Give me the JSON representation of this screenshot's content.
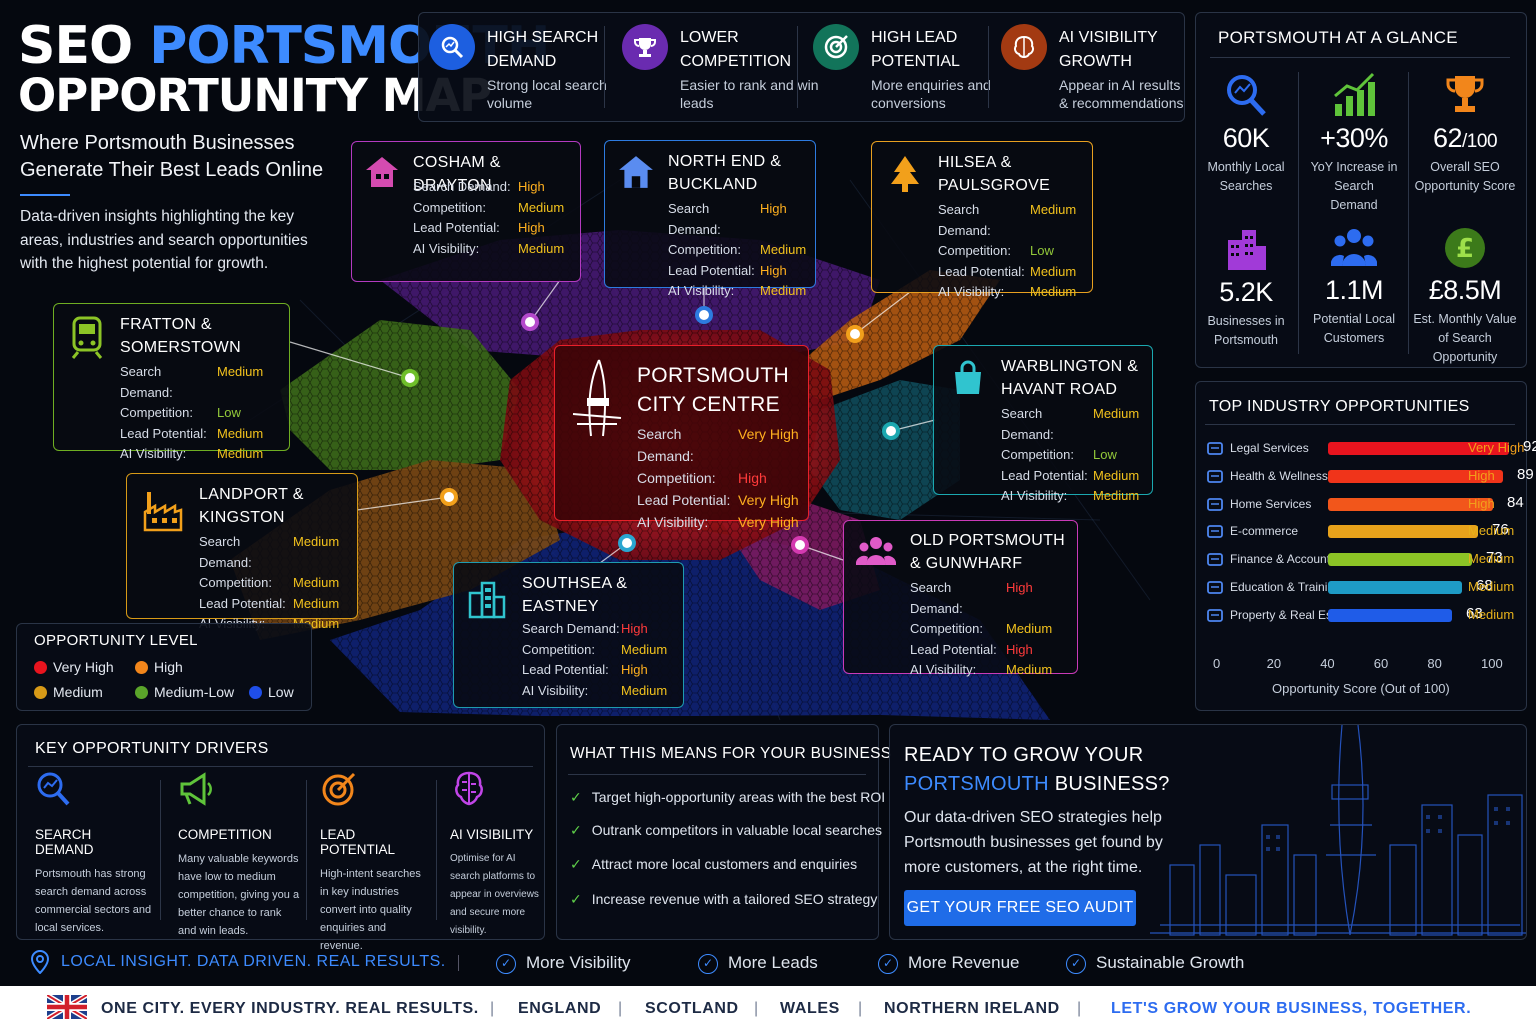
{
  "header": {
    "title_line1_a": "SEO",
    "title_line1_b": "PORTSMOUTH",
    "title_line2": "OPPORTUNITY MAP",
    "subtitle": "Where Portsmouth Businesses Generate Their Best Leads Online",
    "intro": "Data-driven insights highlighting the key areas, industries and search opportunities with the highest potential for growth."
  },
  "features": [
    {
      "title": "HIGH SEARCH DEMAND",
      "desc": "Strong local search volume",
      "icon": "search-chart-icon",
      "color": "#1d5fe0"
    },
    {
      "title": "LOWER COMPETITION",
      "desc": "Easier to rank and win leads",
      "icon": "trophy-icon",
      "color": "#6a2bb0"
    },
    {
      "title": "HIGH LEAD POTENTIAL",
      "desc": "More enquiries and conversions",
      "icon": "target-icon",
      "color": "#12745a"
    },
    {
      "title": "AI VISIBILITY GROWTH",
      "desc": "Appear in AI results & recommendations",
      "icon": "brain-icon",
      "color": "#a33a12"
    }
  ],
  "labels": {
    "search_demand": "Search Demand:",
    "competition": "Competition:",
    "lead_potential": "Lead Potential:",
    "ai_visibility": "AI Visibility:"
  },
  "areas": {
    "cosham": {
      "name": "COSHAM & DRAYTON",
      "demand": "High",
      "competition": "Medium",
      "lead": "High",
      "ai": "Medium"
    },
    "northend": {
      "name": "NORTH END & BUCKLAND",
      "demand": "High",
      "competition": "Medium",
      "lead": "High",
      "ai": "Medium"
    },
    "hilsea": {
      "name": "HILSEA & PAULSGROVE",
      "demand": "Medium",
      "competition": "Low",
      "lead": "Medium",
      "ai": "Medium"
    },
    "fratton": {
      "name": "FRATTON & SOMERSTOWN",
      "demand": "Medium",
      "competition": "Low",
      "lead": "Medium",
      "ai": "Medium"
    },
    "centre": {
      "name": "PORTSMOUTH CITY CENTRE",
      "demand": "Very High",
      "competition": "High",
      "lead": "Very High",
      "ai": "Very High"
    },
    "warblington": {
      "name": "WARBLINGTON & HAVANT ROAD",
      "demand": "Medium",
      "competition": "Low",
      "lead": "Medium",
      "ai": "Medium"
    },
    "landport": {
      "name": "LANDPORT & KINGSTON",
      "demand": "Medium",
      "competition": "Medium",
      "lead": "Medium",
      "ai": "Medium"
    },
    "southsea": {
      "name": "SOUTHSEA & EASTNEY",
      "demand": "High",
      "competition": "Medium",
      "lead": "High",
      "ai": "Medium"
    },
    "oldportsmouth": {
      "name": "OLD PORTSMOUTH & GUNWHARF",
      "demand": "High",
      "competition": "Medium",
      "lead": "High",
      "ai": "Medium"
    }
  },
  "legend": {
    "title": "OPPORTUNITY LEVEL",
    "items": [
      {
        "label": "Very High",
        "color": "#e8141e"
      },
      {
        "label": "High",
        "color": "#f2861b"
      },
      {
        "label": "Medium",
        "color": "#d79a17"
      },
      {
        "label": "Medium-Low",
        "color": "#5aa52a"
      },
      {
        "label": "Low",
        "color": "#1f4ee8"
      }
    ]
  },
  "glance": {
    "title": "PORTSMOUTH AT A GLANCE",
    "stats": [
      {
        "value": "60K",
        "label": "Monthly Local Searches",
        "icon": "search-chart-icon"
      },
      {
        "value": "+30%",
        "label": "YoY Increase in Search Demand",
        "icon": "growth-chart-icon"
      },
      {
        "value": "62",
        "suffix": "/100",
        "label": "Overall SEO Opportunity Score",
        "icon": "trophy-icon"
      },
      {
        "value": "5.2K",
        "label": "Businesses in Portsmouth",
        "icon": "buildings-icon"
      },
      {
        "value": "1.1M",
        "label": "Potential Local Customers",
        "icon": "people-icon"
      },
      {
        "value": "£8.5M",
        "label": "Est. Monthly Value of Search Opportunity",
        "icon": "pound-icon"
      }
    ]
  },
  "industries": {
    "title": "TOP INDUSTRY OPPORTUNITIES",
    "axis_label": "Opportunity Score (Out of 100)",
    "ticks": [
      "0",
      "20",
      "40",
      "60",
      "80",
      "100"
    ],
    "items": [
      {
        "name": "Legal Services",
        "score": 92,
        "level": "Very High",
        "color": "#e8141e"
      },
      {
        "name": "Health & Wellness",
        "score": 89,
        "level": "High",
        "color": "#f0341a"
      },
      {
        "name": "Home Services",
        "score": 84,
        "level": "High",
        "color": "#f2561b"
      },
      {
        "name": "E-commerce",
        "score": 76,
        "level": "Medium",
        "color": "#e7a21b"
      },
      {
        "name": "Finance & Accounting",
        "score": 73,
        "level": "Medium",
        "color": "#8cc426"
      },
      {
        "name": "Education & Training",
        "score": 68,
        "level": "Medium",
        "color": "#1e9bc6"
      },
      {
        "name": "Property & Real Estate",
        "score": 63,
        "level": "Medium",
        "color": "#1f5ce8"
      }
    ]
  },
  "drivers": {
    "title": "KEY OPPORTUNITY DRIVERS",
    "items": [
      {
        "title": "SEARCH DEMAND",
        "desc": "Portsmouth has strong search demand across commercial sectors and local services."
      },
      {
        "title": "COMPETITION",
        "desc": "Many valuable keywords have low to medium competition, giving you a better chance to rank and win leads."
      },
      {
        "title": "LEAD POTENTIAL",
        "desc": "High-intent searches in key industries convert into quality enquiries and revenue."
      },
      {
        "title": "AI VISIBILITY",
        "desc": "Optimise for AI search platforms to appear in overviews and secure more visibility."
      }
    ]
  },
  "means": {
    "title": "WHAT THIS MEANS FOR YOUR BUSINESS",
    "items": [
      "Target high-opportunity areas with the best ROI",
      "Outrank competitors in valuable local searches",
      "Attract more local customers and enquiries",
      "Increase revenue with a tailored SEO strategy"
    ]
  },
  "cta": {
    "line1": "READY TO GROW YOUR",
    "line2_hl": "PORTSMOUTH",
    "line2_rest": " BUSINESS?",
    "body": "Our data-driven SEO strategies help Portsmouth businesses get found by more customers, at the right time.",
    "button": "GET YOUR FREE SEO AUDIT"
  },
  "footer": {
    "tagline": "LOCAL INSIGHT. DATA DRIVEN. REAL RESULTS.",
    "benefits": [
      "More Visibility",
      "More Leads",
      "More Revenue",
      "Sustainable Growth"
    ],
    "bottom": [
      "ONE CITY. EVERY INDUSTRY. REAL RESULTS.",
      "ENGLAND",
      "SCOTLAND",
      "WALES",
      "NORTHERN IRELAND",
      "LET'S GROW YOUR BUSINESS, TOGETHER."
    ]
  }
}
